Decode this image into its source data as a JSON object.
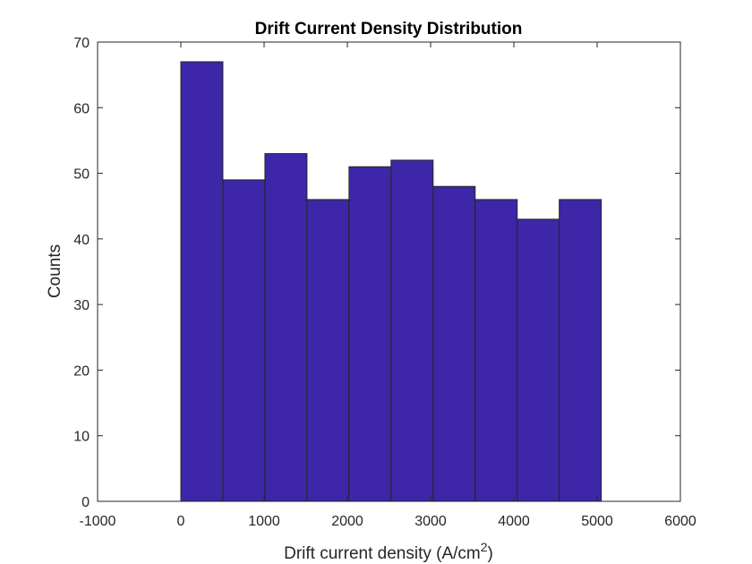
{
  "chart_data": {
    "type": "bar",
    "title": "Drift Current Density Distribution",
    "xlabel": "Drift current density (A/cm",
    "xlabel_sup": "2",
    "xlabel_suffix": ")",
    "ylabel": "Counts",
    "xlim": [
      -1000,
      6000
    ],
    "ylim": [
      0,
      70
    ],
    "xticks": [
      -1000,
      0,
      1000,
      2000,
      3000,
      4000,
      5000,
      6000
    ],
    "yticks": [
      0,
      10,
      20,
      30,
      40,
      50,
      60,
      70
    ],
    "bin_edges": [
      0,
      505,
      1010,
      1515,
      2020,
      2525,
      3030,
      3535,
      4040,
      4545,
      5050
    ],
    "values": [
      67,
      49,
      53,
      46,
      51,
      52,
      48,
      46,
      43,
      46
    ],
    "bar_color": "#3d26a8",
    "edge_color": "#262626",
    "grid": false,
    "legend": "none"
  }
}
